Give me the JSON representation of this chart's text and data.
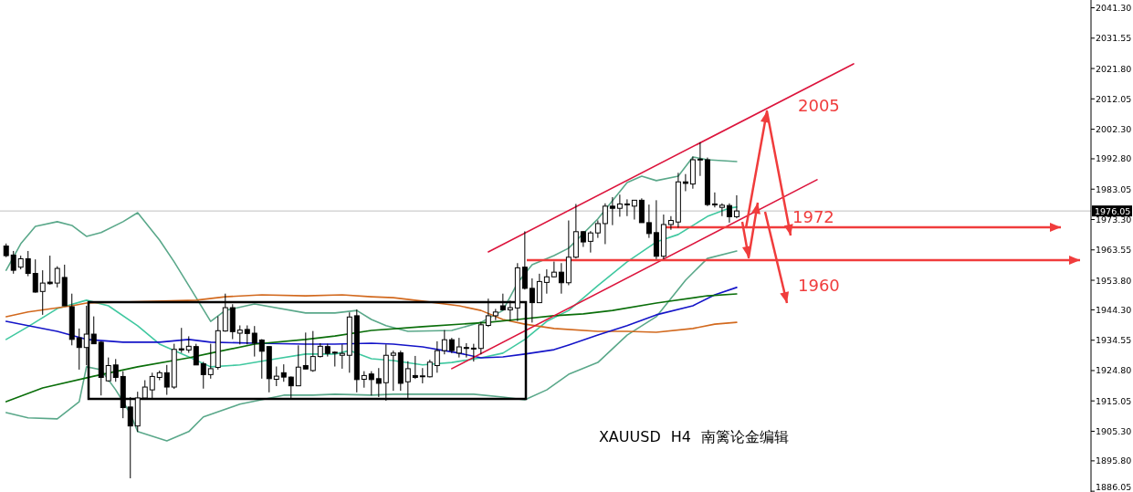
{
  "chart_data": {
    "type": "candlestick",
    "title": "XAUUSD H4 南篱论金编辑",
    "categories": [
      null,
      null,
      null,
      null,
      null,
      null,
      null,
      null,
      null,
      null,
      null,
      null,
      null,
      null,
      null,
      null,
      null,
      null,
      null,
      null,
      null,
      null,
      null,
      null,
      null,
      null,
      null,
      null,
      null,
      null,
      null,
      null,
      null,
      null,
      null,
      null,
      null,
      null,
      null,
      null,
      null,
      null,
      null,
      null,
      null,
      null,
      null,
      null,
      null,
      null,
      null,
      null,
      null,
      null,
      null,
      null,
      null,
      null,
      null,
      null,
      null,
      null,
      null,
      null,
      null,
      null,
      null,
      null,
      null,
      null,
      null,
      null,
      null,
      null,
      null,
      null,
      null,
      null,
      null,
      null,
      null,
      null,
      null,
      null,
      null,
      null,
      null,
      null,
      null,
      null,
      null,
      null,
      null,
      null,
      null,
      null,
      null,
      null,
      null,
      null,
      null,
      null,
      null,
      null,
      null,
      null,
      null,
      null,
      null,
      null,
      null,
      null,
      null,
      null,
      null,
      null,
      null,
      null,
      null,
      null,
      null,
      null,
      null,
      null,
      null,
      null,
      null,
      null,
      null,
      null,
      null,
      null,
      null,
      null,
      null,
      null,
      null,
      null,
      null,
      null,
      null,
      null,
      null,
      null,
      null,
      null,
      null,
      null,
      null
    ],
    "ohlc": [
      [
        1964.8,
        1965.6,
        1961.2,
        1961.7
      ],
      [
        1961.9,
        1963.2,
        1955.9,
        1957.0
      ],
      [
        1958.0,
        1961.7,
        1957.3,
        1960.7
      ],
      [
        1960.7,
        1963.2,
        1955.1,
        1956.0
      ],
      [
        1956.0,
        1960.5,
        1949.8,
        1950.0
      ],
      [
        1950.2,
        1957.0,
        1942.7,
        1952.9
      ],
      [
        1953.2,
        1961.7,
        1952.4,
        1952.7
      ],
      [
        1952.9,
        1958.3,
        1951.5,
        1957.6
      ],
      [
        1954.7,
        1958.8,
        1945.6,
        1945.6
      ],
      [
        1945.3,
        1949.5,
        1932.9,
        1934.8
      ],
      [
        1935.3,
        1938.3,
        1925.1,
        1932.2
      ],
      [
        1932.2,
        1945.6,
        1926.5,
        1936.5
      ],
      [
        1936.5,
        1942.2,
        1933.4,
        1933.4
      ],
      [
        1933.9,
        1934.2,
        1916.8,
        1922.6
      ],
      [
        1921.5,
        1929.0,
        1921.2,
        1926.4
      ],
      [
        1926.6,
        1928.5,
        1921.2,
        1922.6
      ],
      [
        1922.9,
        1924.6,
        1909.5,
        1912.9
      ],
      [
        1913.1,
        1916.3,
        1890.2,
        1907.0
      ],
      [
        1907.0,
        1918.0,
        1905.1,
        1916.0
      ],
      [
        1916.0,
        1921.7,
        1916.0,
        1919.5
      ],
      [
        1918.6,
        1924.1,
        1916.0,
        1922.9
      ],
      [
        1922.6,
        1924.8,
        1921.7,
        1924.1
      ],
      [
        1924.1,
        1926.6,
        1917.0,
        1919.5
      ],
      [
        1919.5,
        1933.4,
        1918.9,
        1931.6
      ],
      [
        1931.8,
        1938.5,
        1930.5,
        1931.4
      ],
      [
        1931.4,
        1935.8,
        1930.5,
        1932.6
      ],
      [
        1932.5,
        1933.4,
        1926.6,
        1926.6
      ],
      [
        1927.0,
        1927.6,
        1919.0,
        1923.5
      ],
      [
        1923.5,
        1933.4,
        1922.2,
        1925.4
      ],
      [
        1925.8,
        1942.2,
        1925.1,
        1937.6
      ],
      [
        1937.5,
        1949.5,
        1937.3,
        1945.0
      ],
      [
        1945.0,
        1946.1,
        1934.9,
        1937.3
      ],
      [
        1936.8,
        1939.3,
        1933.2,
        1937.8
      ],
      [
        1938.0,
        1939.3,
        1933.2,
        1936.7
      ],
      [
        1936.8,
        1939.1,
        1929.3,
        1933.6
      ],
      [
        1934.6,
        1934.9,
        1922.2,
        1931.0
      ],
      [
        1932.5,
        1932.6,
        1917.8,
        1922.2
      ],
      [
        1922.0,
        1926.1,
        1919.8,
        1923.0
      ],
      [
        1924.1,
        1926.8,
        1921.2,
        1922.7
      ],
      [
        1922.7,
        1922.9,
        1915.8,
        1919.9
      ],
      [
        1919.9,
        1932.9,
        1919.9,
        1925.9
      ],
      [
        1926.4,
        1937.0,
        1925.3,
        1925.3
      ],
      [
        1924.8,
        1937.5,
        1924.4,
        1929.3
      ],
      [
        1929.3,
        1933.6,
        1929.0,
        1932.6
      ],
      [
        1932.5,
        1933.4,
        1929.3,
        1930.3
      ],
      [
        1930.5,
        1931.0,
        1926.1,
        1930.7
      ],
      [
        1929.7,
        1933.2,
        1925.4,
        1930.3
      ],
      [
        1929.7,
        1943.5,
        1924.1,
        1942.0
      ],
      [
        1942.4,
        1944.4,
        1917.8,
        1921.9
      ],
      [
        1922.0,
        1924.6,
        1919.3,
        1923.2
      ],
      [
        1923.7,
        1924.6,
        1916.8,
        1921.9
      ],
      [
        1922.2,
        1925.6,
        1916.3,
        1920.7
      ],
      [
        1920.9,
        1933.2,
        1915.1,
        1929.7
      ],
      [
        1929.7,
        1931.2,
        1918.3,
        1930.4
      ],
      [
        1930.5,
        1931.2,
        1918.3,
        1920.7
      ],
      [
        1921.2,
        1927.8,
        1916.0,
        1925.4
      ],
      [
        1923.2,
        1929.5,
        1922.1,
        1922.6
      ],
      [
        1922.9,
        1925.6,
        1920.7,
        1923.1
      ],
      [
        1922.8,
        1928.3,
        1922.6,
        1927.5
      ],
      [
        1926.4,
        1934.2,
        1924.1,
        1931.2
      ],
      [
        1931.2,
        1937.8,
        1930.0,
        1934.7
      ],
      [
        1934.7,
        1935.3,
        1930.4,
        1931.2
      ],
      [
        1930.4,
        1935.3,
        1929.0,
        1932.4
      ],
      [
        1932.2,
        1933.6,
        1929.0,
        1931.9
      ],
      [
        1932.0,
        1933.4,
        1927.7,
        1931.8
      ],
      [
        1931.9,
        1940.4,
        1930.0,
        1939.5
      ],
      [
        1939.3,
        1947.9,
        1938.8,
        1942.4
      ],
      [
        1942.4,
        1944.6,
        1941.0,
        1943.6
      ],
      [
        1945.6,
        1949.5,
        1944.1,
        1944.3
      ],
      [
        1944.3,
        1947.3,
        1940.7,
        1945.0
      ],
      [
        1944.9,
        1959.3,
        1940.7,
        1957.8
      ],
      [
        1958.0,
        1969.5,
        1950.8,
        1951.2
      ],
      [
        1951.2,
        1954.4,
        1940.2,
        1946.6
      ],
      [
        1946.6,
        1955.9,
        1946.6,
        1953.4
      ],
      [
        1953.1,
        1957.3,
        1949.5,
        1954.9
      ],
      [
        1954.9,
        1959.8,
        1954.7,
        1956.4
      ],
      [
        1956.4,
        1959.3,
        1949.5,
        1953.0
      ],
      [
        1953.0,
        1973.0,
        1952.2,
        1961.2
      ],
      [
        1961.2,
        1978.3,
        1960.8,
        1969.4
      ],
      [
        1969.4,
        1969.6,
        1964.5,
        1966.1
      ],
      [
        1966.3,
        1969.6,
        1962.7,
        1969.0
      ],
      [
        1969.0,
        1973.0,
        1967.4,
        1972.0
      ],
      [
        1972.0,
        1978.5,
        1965.4,
        1977.6
      ],
      [
        1977.6,
        1980.5,
        1971.5,
        1976.9
      ],
      [
        1976.9,
        1981.3,
        1974.2,
        1978.3
      ],
      [
        1978.1,
        1979.8,
        1974.4,
        1978.3
      ],
      [
        1977.6,
        1979.5,
        1973.3,
        1979.5
      ],
      [
        1979.5,
        1980.1,
        1972.3,
        1972.3
      ],
      [
        1972.3,
        1978.1,
        1967.4,
        1968.8
      ],
      [
        1969.1,
        1979.5,
        1960.6,
        1961.5
      ],
      [
        1961.5,
        1974.9,
        1960.6,
        1971.7
      ],
      [
        1971.7,
        1974.4,
        1970.0,
        1973.0
      ],
      [
        1972.5,
        1988.3,
        1970.7,
        1985.4
      ],
      [
        1985.4,
        1987.9,
        1982.4,
        1984.9
      ],
      [
        1984.7,
        1993.5,
        1983.2,
        1992.5
      ],
      [
        1992.5,
        1998.1,
        1987.3,
        1992.7
      ],
      [
        1992.5,
        1993.2,
        1977.6,
        1978.1
      ],
      [
        1978.3,
        1982.0,
        1977.2,
        1978.0
      ],
      [
        1977.2,
        1978.5,
        1974.4,
        1977.9
      ],
      [
        1977.8,
        1978.5,
        1972.3,
        1974.2
      ],
      [
        1974.2,
        1981.1,
        1973.7,
        1976.05
      ],
      null,
      null,
      null,
      null,
      null,
      null,
      null,
      null,
      null,
      null,
      null,
      null,
      null,
      null,
      null,
      null,
      null,
      null,
      null,
      null,
      null,
      null,
      null,
      null,
      null,
      null,
      null,
      null,
      null,
      null,
      null,
      null,
      null,
      null,
      null,
      null,
      null,
      null,
      null,
      null,
      null,
      null,
      null,
      null,
      null,
      null,
      null,
      null
    ],
    "series": [
      {
        "type": "line",
        "color": "#5aa88a",
        "values": [
          1957.0,
          null,
          1965.5,
          null,
          1971.1,
          null,
          null,
          1972.6,
          null,
          1971.4,
          null,
          1967.9,
          null,
          1969.1,
          null,
          null,
          1972.6,
          null,
          1975.5,
          null,
          null,
          1966.7,
          null,
          1959.7,
          null,
          1952.1,
          null,
          null,
          1940.6,
          null,
          1944.1,
          null,
          null,
          null,
          1946.2,
          null,
          null,
          null,
          null,
          null,
          null,
          1943.3,
          null,
          null,
          null,
          1943.3,
          null,
          null,
          1944.1,
          null,
          1941.2,
          null,
          1939.2,
          null,
          null,
          1937.4,
          null,
          null,
          null,
          null,
          null,
          1937.7,
          null,
          null,
          null,
          1940.3,
          null,
          null,
          1944.1,
          null,
          1952.9,
          null,
          1958.8,
          null,
          null,
          1961.7,
          null,
          1964.1,
          null,
          null,
          null,
          1973.5,
          null,
          null,
          null,
          1985.2,
          null,
          1987.2,
          null,
          1985.8,
          null,
          null,
          1987.2,
          null,
          1993.4,
          null,
          1992.5,
          null,
          null,
          null,
          1991.9,
          null,
          null,
          null,
          null,
          null,
          null,
          null,
          null,
          null,
          null,
          null,
          null,
          null,
          null,
          null,
          null,
          null,
          null,
          null,
          null,
          null,
          null,
          null,
          null,
          null,
          null,
          null,
          null,
          null,
          null,
          null,
          null,
          null,
          null,
          null,
          null,
          null,
          null,
          null,
          null,
          null,
          null,
          null,
          null,
          null,
          null,
          null,
          null
        ]
      },
      {
        "type": "line",
        "color": "#40c8a0",
        "values": [
          1934.8,
          null,
          null,
          1938.9,
          null,
          null,
          null,
          1944.7,
          null,
          null,
          null,
          1947.4,
          null,
          null,
          1945.6,
          null,
          null,
          null,
          1939.2,
          null,
          null,
          1933.3,
          null,
          null,
          null,
          1929.2,
          null,
          null,
          1926.0,
          null,
          null,
          null,
          1926.6,
          null,
          null,
          null,
          null,
          1928.6,
          null,
          null,
          null,
          1930.1,
          null,
          null,
          null,
          1930.1,
          null,
          1931.2,
          null,
          null,
          1928.6,
          null,
          null,
          1928.0,
          null,
          null,
          null,
          1926.6,
          null,
          null,
          null,
          1927.4,
          null,
          null,
          null,
          1928.9,
          null,
          null,
          1930.4,
          null,
          null,
          1934.8,
          null,
          null,
          1940.6,
          null,
          null,
          1944.1,
          null,
          null,
          null,
          1952.1,
          null,
          null,
          null,
          1959.7,
          null,
          null,
          null,
          1966.1,
          null,
          null,
          1968.5,
          null,
          null,
          null,
          1974.3,
          null,
          null,
          1977.0,
          1977.3,
          null,
          null,
          null,
          null,
          null,
          null,
          null,
          null,
          null,
          null,
          null,
          null,
          null,
          null,
          null,
          null,
          null,
          null,
          null,
          null,
          null,
          null,
          null,
          null,
          null,
          null,
          null,
          null,
          null,
          null,
          null,
          null,
          null,
          null,
          null,
          null,
          null,
          null,
          null,
          null,
          null,
          null,
          null,
          null,
          null,
          null,
          null,
          null
        ]
      },
      {
        "type": "line",
        "color": "#5aa88a",
        "values": [
          1911.3,
          null,
          null,
          1909.6,
          null,
          null,
          null,
          1909.3,
          null,
          null,
          1914.8,
          1926.0,
          null,
          1925.1,
          null,
          1918.6,
          null,
          1911.0,
          1905.2,
          null,
          null,
          null,
          1902.2,
          null,
          null,
          1905.2,
          null,
          1909.9,
          null,
          null,
          null,
          null,
          1914.0,
          null,
          null,
          null,
          null,
          null,
          1916.9,
          null,
          null,
          null,
          1916.9,
          null,
          null,
          1917.2,
          null,
          null,
          null,
          null,
          1916.9,
          null,
          null,
          1917.2,
          null,
          null,
          null,
          1917.2,
          null,
          null,
          null,
          null,
          null,
          null,
          1917.2,
          null,
          null,
          null,
          1916.3,
          null,
          null,
          1915.4,
          null,
          null,
          1918.6,
          null,
          null,
          1923.6,
          null,
          null,
          null,
          1927.4,
          null,
          null,
          null,
          1936.2,
          null,
          null,
          null,
          1942.1,
          null,
          null,
          null,
          1953.8,
          null,
          null,
          1960.8,
          null,
          null,
          null,
          1963.2,
          null,
          null,
          null,
          null,
          null,
          null,
          null,
          null,
          null,
          null,
          null,
          null,
          null,
          null,
          null,
          null,
          null,
          null,
          null,
          null,
          null,
          null,
          null,
          null,
          null,
          null,
          null,
          null,
          null,
          null,
          null,
          null,
          null,
          null,
          null,
          null,
          null,
          null,
          null,
          null,
          null,
          null,
          null,
          null,
          null,
          null,
          null,
          null
        ]
      },
      {
        "type": "line",
        "color": "#d2691e",
        "values": [
          1942.1,
          null,
          null,
          1943.6,
          null,
          null,
          null,
          null,
          null,
          1945.6,
          null,
          1946.5,
          null,
          null,
          null,
          null,
          null,
          null,
          null,
          null,
          null,
          null,
          null,
          null,
          null,
          null,
          1947.4,
          null,
          null,
          null,
          1948.5,
          null,
          null,
          null,
          null,
          1949.1,
          null,
          null,
          null,
          null,
          null,
          1948.8,
          null,
          null,
          null,
          null,
          1949.1,
          null,
          null,
          null,
          1948.5,
          null,
          null,
          1948.2,
          null,
          null,
          null,
          1947.1,
          null,
          null,
          null,
          null,
          1945.6,
          null,
          null,
          1944.1,
          null,
          null,
          1941.2,
          null,
          null,
          1939.7,
          null,
          null,
          null,
          1938.3,
          null,
          null,
          null,
          null,
          null,
          1937.4,
          null,
          null,
          null,
          1937.4,
          null,
          null,
          null,
          1937.1,
          null,
          null,
          null,
          null,
          1938.3,
          null,
          null,
          1939.7,
          null,
          null,
          1940.3,
          null,
          null,
          null,
          null,
          null,
          null,
          null,
          null,
          null,
          null,
          null,
          null,
          null,
          null,
          null,
          null,
          null,
          null,
          null,
          null,
          null,
          null,
          null,
          null,
          null,
          null,
          null,
          null,
          null,
          null,
          null,
          null,
          null,
          null,
          null,
          null,
          null,
          null,
          null,
          null,
          null,
          null,
          null,
          null,
          null,
          null,
          null,
          null
        ]
      },
      {
        "type": "line",
        "color": "#1414c8",
        "values": [
          1940.6,
          null,
          null,
          1939.2,
          null,
          null,
          null,
          1937.4,
          null,
          null,
          null,
          1934.8,
          null,
          null,
          null,
          null,
          1933.9,
          null,
          null,
          null,
          null,
          1933.9,
          null,
          null,
          null,
          1934.8,
          null,
          null,
          1933.9,
          null,
          null,
          null,
          null,
          null,
          1933.6,
          null,
          null,
          null,
          null,
          null,
          null,
          1933.3,
          null,
          null,
          null,
          1933.3,
          null,
          null,
          null,
          null,
          1933.6,
          null,
          null,
          1933.3,
          null,
          null,
          null,
          1932.4,
          null,
          null,
          null,
          null,
          1930.4,
          null,
          null,
          1928.9,
          null,
          null,
          1929.2,
          null,
          null,
          1930.1,
          null,
          null,
          null,
          1931.5,
          null,
          1933.0,
          null,
          null,
          null,
          1936.2,
          null,
          null,
          null,
          1939.2,
          null,
          null,
          null,
          1942.7,
          null,
          null,
          null,
          null,
          1945.6,
          null,
          null,
          1949.1,
          null,
          null,
          1951.5,
          null,
          null,
          null,
          null,
          null,
          null,
          null,
          null,
          null,
          null,
          null,
          null,
          null,
          null,
          null,
          null,
          null,
          null,
          null,
          null,
          null,
          null,
          null,
          null,
          null,
          null,
          null,
          null,
          null,
          null,
          null,
          null,
          null,
          null,
          null,
          null,
          null,
          null,
          null,
          null,
          null,
          null,
          null,
          null,
          null,
          null,
          null,
          null
        ]
      },
      {
        "type": "line",
        "color": "#0a6e0a",
        "values": [
          1914.8,
          null,
          null,
          null,
          null,
          1919.2,
          null,
          null,
          null,
          null,
          null,
          null,
          1923.0,
          null,
          null,
          null,
          null,
          null,
          1926.0,
          null,
          null,
          null,
          null,
          null,
          null,
          1928.9,
          null,
          null,
          1930.4,
          null,
          null,
          null,
          null,
          null,
          1933.3,
          null,
          null,
          null,
          null,
          null,
          null,
          1934.8,
          null,
          null,
          null,
          1935.9,
          null,
          null,
          null,
          null,
          1937.7,
          null,
          null,
          null,
          null,
          null,
          null,
          1938.9,
          null,
          null,
          null,
          null,
          null,
          null,
          null,
          null,
          1940.3,
          null,
          null,
          null,
          1941.2,
          null,
          null,
          null,
          null,
          1942.4,
          null,
          null,
          null,
          1943.0,
          null,
          null,
          null,
          1944.1,
          null,
          null,
          null,
          null,
          null,
          1946.5,
          null,
          null,
          null,
          null,
          null,
          null,
          1948.8,
          null,
          null,
          null,
          1949.4,
          null,
          null,
          null,
          null,
          null,
          null,
          null,
          null,
          null,
          null,
          null,
          null,
          null,
          null,
          null,
          null,
          null,
          null,
          null,
          null,
          null,
          null,
          null,
          null,
          null,
          null,
          null,
          null,
          null,
          null,
          null,
          null,
          null,
          null,
          null,
          null,
          null,
          null,
          null,
          null,
          null,
          null,
          null,
          null,
          null,
          null,
          null,
          null
        ]
      },
      {
        "type": "line",
        "color": "#dc143c",
        "values": [
          null,
          null,
          null,
          null,
          null,
          null,
          null,
          null,
          null,
          null,
          null,
          null,
          null,
          null,
          null,
          null,
          null,
          null,
          null,
          null,
          null,
          null,
          null,
          null,
          null,
          null,
          null,
          null,
          null,
          null,
          null,
          null,
          null,
          null,
          null,
          null,
          null,
          null,
          null,
          null,
          null,
          null,
          null,
          null,
          null,
          null,
          null,
          null,
          null,
          null,
          null,
          null,
          null,
          null,
          null,
          null,
          null,
          null,
          null,
          null,
          null,
          null,
          null,
          null,
          null,
          null,
          1962.9,
          null,
          null,
          null,
          null,
          null,
          null,
          null,
          null,
          null,
          null,
          null,
          null,
          null,
          null,
          null,
          null,
          null,
          null,
          null,
          null,
          null,
          null,
          null,
          null,
          null,
          null,
          null,
          null,
          null,
          null,
          null,
          null,
          null,
          null,
          null,
          null,
          null,
          null,
          null,
          null,
          null,
          null,
          null,
          null,
          null,
          null,
          null,
          null,
          null,
          2023.3,
          null,
          null,
          null,
          null,
          null,
          null,
          null,
          null,
          null,
          null,
          null,
          null,
          null,
          null,
          null,
          null,
          null,
          null,
          null,
          null,
          null,
          null,
          null,
          null,
          null,
          null,
          null,
          null,
          null,
          null,
          null,
          null
        ]
      },
      {
        "type": "line",
        "color": "#dc143c",
        "values": [
          null,
          null,
          null,
          null,
          null,
          null,
          null,
          null,
          null,
          null,
          null,
          null,
          null,
          null,
          null,
          null,
          null,
          null,
          null,
          null,
          null,
          null,
          null,
          null,
          null,
          null,
          null,
          null,
          null,
          null,
          null,
          null,
          null,
          null,
          null,
          null,
          null,
          null,
          null,
          null,
          null,
          null,
          null,
          null,
          null,
          null,
          null,
          null,
          null,
          null,
          null,
          null,
          null,
          null,
          null,
          null,
          null,
          null,
          null,
          null,
          null,
          1925.4,
          null,
          null,
          null,
          null,
          null,
          null,
          null,
          null,
          null,
          null,
          null,
          null,
          null,
          null,
          null,
          null,
          null,
          null,
          null,
          null,
          null,
          null,
          null,
          null,
          null,
          null,
          null,
          null,
          null,
          null,
          null,
          null,
          null,
          null,
          null,
          null,
          null,
          null,
          null,
          null,
          null,
          null,
          null,
          null,
          null,
          null,
          null,
          null,
          null,
          1986.1,
          null,
          null,
          null,
          null,
          null,
          null,
          null,
          null,
          null,
          null,
          null,
          null,
          null,
          null,
          null,
          null,
          null,
          null,
          null,
          null,
          null,
          null,
          null,
          null,
          null,
          null,
          null,
          null,
          null,
          null,
          null,
          null,
          null,
          null,
          null,
          null,
          null
        ]
      }
    ],
    "ref_lines": [
      {
        "axis": "y",
        "value": 1976.05,
        "label": "1976.05",
        "color": "#c0c0c0"
      }
    ],
    "annotations": [
      "2005",
      "1972",
      "1960"
    ],
    "ylim": [
      1885.8,
      2043.8
    ],
    "yticks": [
      {
        "value": 2041.3,
        "label": "2041.30"
      },
      {
        "value": 2031.55,
        "label": "2031.55"
      },
      {
        "value": 2021.8,
        "label": "2021.80"
      },
      {
        "value": 2012.05,
        "label": "2012.05"
      },
      {
        "value": 2002.3,
        "label": "2002.30"
      },
      {
        "value": 1992.8,
        "label": "1992.80"
      },
      {
        "value": 1983.05,
        "label": "1983.05"
      },
      {
        "value": 1973.3,
        "label": "1973.30"
      },
      {
        "value": 1963.55,
        "label": "1963.55"
      },
      {
        "value": 1953.8,
        "label": "1953.80"
      },
      {
        "value": 1944.3,
        "label": "1944.30"
      },
      {
        "value": 1934.55,
        "label": "1934.55"
      },
      {
        "value": 1924.8,
        "label": "1924.80"
      },
      {
        "value": 1915.05,
        "label": "1915.05"
      },
      {
        "value": 1905.3,
        "label": "1905.30"
      },
      {
        "value": 1895.8,
        "label": "1895.80"
      },
      {
        "value": 1886.05,
        "label": "1886.05"
      }
    ],
    "tick_labels": "y"
  }
}
